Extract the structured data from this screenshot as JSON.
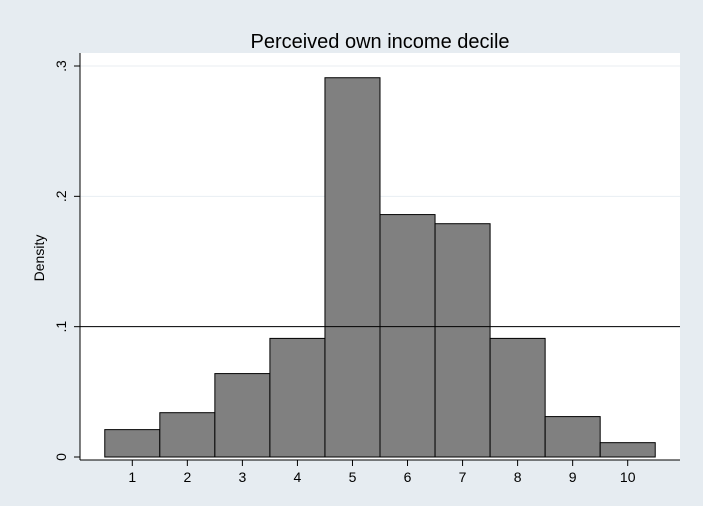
{
  "chart_data": {
    "type": "bar",
    "title": "Perceived own income decile",
    "xlabel": "",
    "ylabel": "Density",
    "categories": [
      "1",
      "2",
      "3",
      "4",
      "5",
      "6",
      "7",
      "8",
      "9",
      "10"
    ],
    "values": [
      0.021,
      0.034,
      0.064,
      0.091,
      0.291,
      0.186,
      0.179,
      0.091,
      0.031,
      0.011
    ],
    "xlim": [
      0.05,
      10.95
    ],
    "ylim": [
      0,
      0.3
    ],
    "yticks": [
      0,
      0.1,
      0.2,
      0.3
    ],
    "ytick_labels": [
      "0",
      ".1",
      ".2",
      ".3"
    ],
    "reference_line_y": 0.1,
    "grid": true,
    "colors": {
      "bar_fill": "#808080",
      "bar_stroke": "#000000",
      "plot_background": "#ffffff",
      "outer_background": "#e6ecf1",
      "grid": "#e8eef2",
      "reference_line": "#000000"
    }
  }
}
